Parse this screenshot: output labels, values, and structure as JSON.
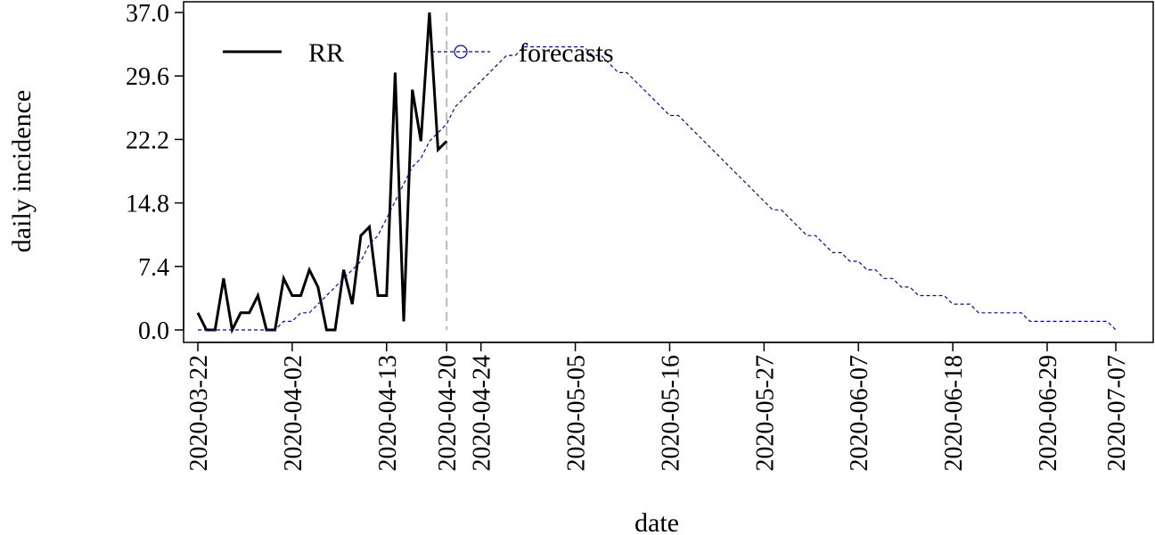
{
  "chart_data": {
    "type": "line",
    "xlabel": "date",
    "ylabel": "daily incidence",
    "xlim": [
      "2020-03-22",
      "2020-07-07"
    ],
    "ylim": [
      0,
      37
    ],
    "yticks": [
      "0.0",
      "7.4",
      "14.8",
      "22.2",
      "29.6",
      "37.0"
    ],
    "xticks": [
      "2020-03-22",
      "2020-04-02",
      "2020-04-13",
      "2020-04-20",
      "2020-04-24",
      "2020-05-05",
      "2020-05-16",
      "2020-05-27",
      "2020-06-07",
      "2020-06-18",
      "2020-06-29",
      "2020-07-07"
    ],
    "vline_date": "2020-04-20",
    "legend_position": "top-left",
    "colors": {
      "RR": "#000000",
      "forecasts": "#0000cc",
      "vline": "#bbbbbb"
    },
    "series": [
      {
        "name": "RR",
        "style": "solid",
        "x": [
          "2020-03-22",
          "2020-03-23",
          "2020-03-24",
          "2020-03-25",
          "2020-03-26",
          "2020-03-27",
          "2020-03-28",
          "2020-03-29",
          "2020-03-30",
          "2020-03-31",
          "2020-04-01",
          "2020-04-02",
          "2020-04-03",
          "2020-04-04",
          "2020-04-05",
          "2020-04-06",
          "2020-04-07",
          "2020-04-08",
          "2020-04-09",
          "2020-04-10",
          "2020-04-11",
          "2020-04-12",
          "2020-04-13",
          "2020-04-14",
          "2020-04-15",
          "2020-04-16",
          "2020-04-17",
          "2020-04-18",
          "2020-04-19",
          "2020-04-20"
        ],
        "values": [
          2,
          0,
          0,
          6,
          0,
          2,
          2,
          4,
          0,
          0,
          6,
          4,
          4,
          7,
          5,
          0,
          0,
          7,
          3,
          11,
          12,
          4,
          4,
          30,
          1,
          28,
          22,
          37,
          21,
          22
        ]
      },
      {
        "name": "forecasts",
        "style": "dashed",
        "x": [
          "2020-03-22",
          "2020-03-23",
          "2020-03-24",
          "2020-03-25",
          "2020-03-26",
          "2020-03-27",
          "2020-03-28",
          "2020-03-29",
          "2020-03-30",
          "2020-03-31",
          "2020-04-01",
          "2020-04-02",
          "2020-04-03",
          "2020-04-04",
          "2020-04-05",
          "2020-04-06",
          "2020-04-07",
          "2020-04-08",
          "2020-04-09",
          "2020-04-10",
          "2020-04-11",
          "2020-04-12",
          "2020-04-13",
          "2020-04-14",
          "2020-04-15",
          "2020-04-16",
          "2020-04-17",
          "2020-04-18",
          "2020-04-19",
          "2020-04-20",
          "2020-04-21",
          "2020-04-22",
          "2020-04-23",
          "2020-04-24",
          "2020-04-25",
          "2020-04-26",
          "2020-04-27",
          "2020-04-28",
          "2020-04-29",
          "2020-04-30",
          "2020-05-01",
          "2020-05-02",
          "2020-05-03",
          "2020-05-04",
          "2020-05-05",
          "2020-05-06",
          "2020-05-07",
          "2020-05-08",
          "2020-05-09",
          "2020-05-10",
          "2020-05-11",
          "2020-05-12",
          "2020-05-13",
          "2020-05-14",
          "2020-05-15",
          "2020-05-16",
          "2020-05-17",
          "2020-05-18",
          "2020-05-19",
          "2020-05-20",
          "2020-05-21",
          "2020-05-22",
          "2020-05-23",
          "2020-05-24",
          "2020-05-25",
          "2020-05-26",
          "2020-05-27",
          "2020-05-28",
          "2020-05-29",
          "2020-05-30",
          "2020-05-31",
          "2020-06-01",
          "2020-06-02",
          "2020-06-03",
          "2020-06-04",
          "2020-06-05",
          "2020-06-06",
          "2020-06-07",
          "2020-06-08",
          "2020-06-09",
          "2020-06-10",
          "2020-06-11",
          "2020-06-12",
          "2020-06-13",
          "2020-06-14",
          "2020-06-15",
          "2020-06-16",
          "2020-06-17",
          "2020-06-18",
          "2020-06-19",
          "2020-06-20",
          "2020-06-21",
          "2020-06-22",
          "2020-06-23",
          "2020-06-24",
          "2020-06-25",
          "2020-06-26",
          "2020-06-27",
          "2020-06-28",
          "2020-06-29",
          "2020-06-30",
          "2020-07-01",
          "2020-07-02",
          "2020-07-03",
          "2020-07-04",
          "2020-07-05",
          "2020-07-06",
          "2020-07-07"
        ],
        "values": [
          0,
          0,
          0,
          0,
          0,
          0,
          0,
          0,
          0,
          0,
          1,
          1,
          2,
          2,
          3,
          4,
          5,
          6,
          7,
          8,
          10,
          11,
          13,
          15,
          17,
          19,
          20,
          22,
          23,
          24,
          26,
          27,
          28,
          29,
          30,
          31,
          32,
          32,
          33,
          33,
          33,
          33,
          33,
          33,
          33,
          33,
          32,
          32,
          31,
          30,
          30,
          29,
          28,
          27,
          26,
          25,
          25,
          24,
          23,
          22,
          21,
          20,
          19,
          18,
          17,
          16,
          15,
          14,
          14,
          13,
          12,
          11,
          11,
          10,
          9,
          9,
          8,
          8,
          7,
          7,
          6,
          6,
          5,
          5,
          4,
          4,
          4,
          4,
          3,
          3,
          3,
          2,
          2,
          2,
          2,
          2,
          2,
          1,
          1,
          1,
          1,
          1,
          1,
          1,
          1,
          1,
          1,
          0
        ]
      }
    ]
  }
}
